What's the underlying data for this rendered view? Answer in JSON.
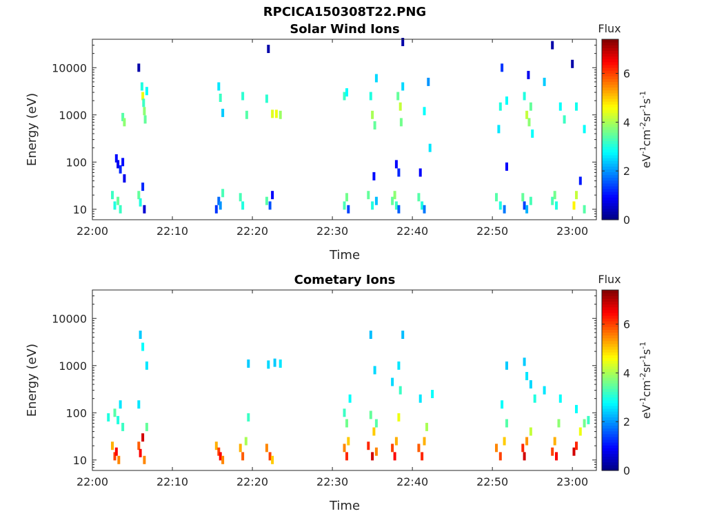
{
  "figure_title": "RPCICA150308T22.PNG",
  "chart_data": [
    {
      "type": "heatmap",
      "title": "Solar Wind Ions",
      "xlabel": "Time",
      "ylabel": "Energy (eV)",
      "y_scale": "log",
      "x_range": [
        "22:00",
        "23:03"
      ],
      "ylim": [
        6,
        40000
      ],
      "x_ticks": [
        "22:00",
        "22:10",
        "22:20",
        "22:30",
        "22:40",
        "22:50",
        "23:00"
      ],
      "y_ticks": [
        {
          "value": 10,
          "label": "10"
        },
        {
          "value": 100,
          "label": "100"
        },
        {
          "value": 1000,
          "label": "1000"
        },
        {
          "value": 10000,
          "label": "10000"
        }
      ],
      "colorbar": {
        "title": "Flux",
        "label": "eV-1cm-2sr-1s-1",
        "range": [
          0,
          7.4
        ],
        "ticks": [
          "0",
          "2",
          "4",
          "6"
        ],
        "colormap": "jet"
      },
      "points": [
        {
          "t": 2.5,
          "e": 20,
          "f": 3.2
        },
        {
          "t": 2.8,
          "e": 12,
          "f": 3.0
        },
        {
          "t": 3.2,
          "e": 15,
          "f": 3.5
        },
        {
          "t": 3.5,
          "e": 10,
          "f": 3.2
        },
        {
          "t": 3.0,
          "e": 120,
          "f": 1.0
        },
        {
          "t": 3.2,
          "e": 90,
          "f": 0.8
        },
        {
          "t": 3.5,
          "e": 70,
          "f": 1.2
        },
        {
          "t": 3.8,
          "e": 100,
          "f": 1.0
        },
        {
          "t": 4.0,
          "e": 45,
          "f": 0.8
        },
        {
          "t": 3.8,
          "e": 900,
          "f": 3.4
        },
        {
          "t": 4.0,
          "e": 700,
          "f": 3.8
        },
        {
          "t": 5.8,
          "e": 10000,
          "f": 0.3
        },
        {
          "t": 5.8,
          "e": 20,
          "f": 3.5
        },
        {
          "t": 6.0,
          "e": 14,
          "f": 3.0
        },
        {
          "t": 6.3,
          "e": 30,
          "f": 1.2
        },
        {
          "t": 6.5,
          "e": 10,
          "f": 0.6
        },
        {
          "t": 6.2,
          "e": 4000,
          "f": 3.0
        },
        {
          "t": 6.3,
          "e": 2500,
          "f": 4.5
        },
        {
          "t": 6.5,
          "e": 1200,
          "f": 3.8
        },
        {
          "t": 6.6,
          "e": 800,
          "f": 3.5
        },
        {
          "t": 6.8,
          "e": 3200,
          "f": 2.8
        },
        {
          "t": 6.4,
          "e": 1800,
          "f": 3.2
        },
        {
          "t": 15.5,
          "e": 10,
          "f": 1.3
        },
        {
          "t": 15.8,
          "e": 15,
          "f": 1.7
        },
        {
          "t": 16.0,
          "e": 12,
          "f": 2.0
        },
        {
          "t": 16.3,
          "e": 22,
          "f": 3.3
        },
        {
          "t": 15.8,
          "e": 4000,
          "f": 2.6
        },
        {
          "t": 16.0,
          "e": 2300,
          "f": 3.2
        },
        {
          "t": 16.3,
          "e": 1100,
          "f": 2.4
        },
        {
          "t": 18.5,
          "e": 18,
          "f": 3.3
        },
        {
          "t": 18.8,
          "e": 12,
          "f": 3.0
        },
        {
          "t": 18.8,
          "e": 2500,
          "f": 3.1
        },
        {
          "t": 19.3,
          "e": 1000,
          "f": 3.4
        },
        {
          "t": 21.8,
          "e": 15,
          "f": 3.4
        },
        {
          "t": 22.2,
          "e": 12,
          "f": 1.5
        },
        {
          "t": 22.5,
          "e": 20,
          "f": 0.9
        },
        {
          "t": 21.8,
          "e": 2200,
          "f": 3.1
        },
        {
          "t": 22.0,
          "e": 25000,
          "f": 0.3
        },
        {
          "t": 22.5,
          "e": 1050,
          "f": 4.4
        },
        {
          "t": 23.0,
          "e": 1050,
          "f": 4.5
        },
        {
          "t": 23.5,
          "e": 1000,
          "f": 3.9
        },
        {
          "t": 31.5,
          "e": 12,
          "f": 3.3
        },
        {
          "t": 31.8,
          "e": 18,
          "f": 3.6
        },
        {
          "t": 32.0,
          "e": 10,
          "f": 1.4
        },
        {
          "t": 31.5,
          "e": 2500,
          "f": 3.2
        },
        {
          "t": 31.8,
          "e": 3000,
          "f": 2.8
        },
        {
          "t": 34.5,
          "e": 20,
          "f": 3.5
        },
        {
          "t": 35.0,
          "e": 12,
          "f": 3.0
        },
        {
          "t": 35.2,
          "e": 50,
          "f": 1.0
        },
        {
          "t": 35.5,
          "e": 15,
          "f": 2.3
        },
        {
          "t": 34.8,
          "e": 2500,
          "f": 3.0
        },
        {
          "t": 35.0,
          "e": 1000,
          "f": 4.0
        },
        {
          "t": 35.3,
          "e": 600,
          "f": 3.5
        },
        {
          "t": 35.5,
          "e": 6000,
          "f": 2.5
        },
        {
          "t": 37.5,
          "e": 15,
          "f": 3.5
        },
        {
          "t": 37.8,
          "e": 20,
          "f": 3.8
        },
        {
          "t": 38.0,
          "e": 12,
          "f": 3.2
        },
        {
          "t": 38.3,
          "e": 10,
          "f": 1.6
        },
        {
          "t": 38.0,
          "e": 90,
          "f": 0.9
        },
        {
          "t": 38.3,
          "e": 60,
          "f": 1.2
        },
        {
          "t": 38.2,
          "e": 2500,
          "f": 3.5
        },
        {
          "t": 38.5,
          "e": 1500,
          "f": 4.2
        },
        {
          "t": 38.6,
          "e": 700,
          "f": 3.6
        },
        {
          "t": 38.8,
          "e": 4000,
          "f": 2.5
        },
        {
          "t": 38.8,
          "e": 35000,
          "f": 0.3
        },
        {
          "t": 40.8,
          "e": 18,
          "f": 3.4
        },
        {
          "t": 41.2,
          "e": 12,
          "f": 3.0
        },
        {
          "t": 41.5,
          "e": 10,
          "f": 1.8
        },
        {
          "t": 41.0,
          "e": 60,
          "f": 0.9
        },
        {
          "t": 41.5,
          "e": 1200,
          "f": 2.8
        },
        {
          "t": 42.0,
          "e": 5000,
          "f": 2.0
        },
        {
          "t": 42.2,
          "e": 200,
          "f": 2.6
        },
        {
          "t": 50.5,
          "e": 18,
          "f": 3.4
        },
        {
          "t": 51.0,
          "e": 12,
          "f": 3.0
        },
        {
          "t": 51.5,
          "e": 10,
          "f": 1.8
        },
        {
          "t": 51.8,
          "e": 80,
          "f": 0.9
        },
        {
          "t": 50.8,
          "e": 500,
          "f": 2.6
        },
        {
          "t": 51.0,
          "e": 1500,
          "f": 3.0
        },
        {
          "t": 51.8,
          "e": 2000,
          "f": 2.8
        },
        {
          "t": 51.2,
          "e": 10000,
          "f": 1.3
        },
        {
          "t": 53.8,
          "e": 18,
          "f": 3.5
        },
        {
          "t": 54.0,
          "e": 12,
          "f": 1.4
        },
        {
          "t": 54.3,
          "e": 10,
          "f": 2.2
        },
        {
          "t": 54.8,
          "e": 15,
          "f": 3.3
        },
        {
          "t": 54.0,
          "e": 2500,
          "f": 3.0
        },
        {
          "t": 54.3,
          "e": 1000,
          "f": 4.2
        },
        {
          "t": 54.6,
          "e": 700,
          "f": 3.8
        },
        {
          "t": 54.8,
          "e": 1500,
          "f": 3.5
        },
        {
          "t": 55.0,
          "e": 400,
          "f": 2.8
        },
        {
          "t": 54.5,
          "e": 7000,
          "f": 0.8
        },
        {
          "t": 57.5,
          "e": 15,
          "f": 3.3
        },
        {
          "t": 58.0,
          "e": 12,
          "f": 3.0
        },
        {
          "t": 57.8,
          "e": 20,
          "f": 3.6
        },
        {
          "t": 56.5,
          "e": 5000,
          "f": 2.4
        },
        {
          "t": 57.5,
          "e": 30000,
          "f": 0.3
        },
        {
          "t": 58.5,
          "e": 1500,
          "f": 2.8
        },
        {
          "t": 59.0,
          "e": 800,
          "f": 3.2
        },
        {
          "t": 60.2,
          "e": 12,
          "f": 4.7
        },
        {
          "t": 60.5,
          "e": 20,
          "f": 4.2
        },
        {
          "t": 61.0,
          "e": 40,
          "f": 1.1
        },
        {
          "t": 61.5,
          "e": 10,
          "f": 3.4
        },
        {
          "t": 60.0,
          "e": 12000,
          "f": 0.3
        },
        {
          "t": 60.5,
          "e": 1500,
          "f": 2.9
        },
        {
          "t": 61.5,
          "e": 500,
          "f": 2.8
        }
      ]
    },
    {
      "type": "heatmap",
      "title": "Cometary Ions",
      "xlabel": "Time",
      "ylabel": "Energy (eV)",
      "y_scale": "log",
      "x_range": [
        "22:00",
        "23:03"
      ],
      "ylim": [
        6,
        40000
      ],
      "x_ticks": [
        "22:00",
        "22:10",
        "22:20",
        "22:30",
        "22:40",
        "22:50",
        "23:00"
      ],
      "y_ticks": [
        {
          "value": 10,
          "label": "10"
        },
        {
          "value": 100,
          "label": "100"
        },
        {
          "value": 1000,
          "label": "1000"
        },
        {
          "value": 10000,
          "label": "10000"
        }
      ],
      "colorbar": {
        "title": "Flux",
        "label": "eV-1cm-2sr-1s-1",
        "range": [
          0,
          7.4
        ],
        "ticks": [
          "0",
          "2",
          "4",
          "6"
        ],
        "colormap": "jet"
      },
      "points": [
        {
          "t": 2.5,
          "e": 20,
          "f": 5.2
        },
        {
          "t": 2.8,
          "e": 12,
          "f": 6.0
        },
        {
          "t": 3.0,
          "e": 15,
          "f": 6.5
        },
        {
          "t": 3.3,
          "e": 10,
          "f": 5.5
        },
        {
          "t": 2.8,
          "e": 100,
          "f": 3.4
        },
        {
          "t": 3.2,
          "e": 70,
          "f": 3.0
        },
        {
          "t": 3.5,
          "e": 150,
          "f": 2.6
        },
        {
          "t": 3.8,
          "e": 50,
          "f": 3.2
        },
        {
          "t": 2.0,
          "e": 80,
          "f": 3.0
        },
        {
          "t": 5.8,
          "e": 20,
          "f": 5.8
        },
        {
          "t": 6.0,
          "e": 14,
          "f": 6.5
        },
        {
          "t": 6.3,
          "e": 30,
          "f": 6.8
        },
        {
          "t": 6.5,
          "e": 10,
          "f": 5.5
        },
        {
          "t": 6.8,
          "e": 50,
          "f": 3.5
        },
        {
          "t": 6.0,
          "e": 4500,
          "f": 2.4
        },
        {
          "t": 6.3,
          "e": 2500,
          "f": 2.8
        },
        {
          "t": 6.8,
          "e": 1000,
          "f": 2.6
        },
        {
          "t": 5.8,
          "e": 150,
          "f": 2.6
        },
        {
          "t": 15.5,
          "e": 20,
          "f": 5.2
        },
        {
          "t": 15.8,
          "e": 15,
          "f": 6.0
        },
        {
          "t": 16.0,
          "e": 12,
          "f": 6.5
        },
        {
          "t": 16.3,
          "e": 10,
          "f": 5.5
        },
        {
          "t": 18.5,
          "e": 18,
          "f": 5.2
        },
        {
          "t": 18.8,
          "e": 12,
          "f": 5.8
        },
        {
          "t": 19.2,
          "e": 25,
          "f": 4.0
        },
        {
          "t": 19.5,
          "e": 80,
          "f": 3.2
        },
        {
          "t": 21.8,
          "e": 18,
          "f": 5.5
        },
        {
          "t": 22.2,
          "e": 12,
          "f": 6.0
        },
        {
          "t": 22.5,
          "e": 10,
          "f": 5.0
        },
        {
          "t": 19.5,
          "e": 1100,
          "f": 2.4
        },
        {
          "t": 22.0,
          "e": 1050,
          "f": 2.5
        },
        {
          "t": 22.8,
          "e": 1150,
          "f": 2.4
        },
        {
          "t": 23.5,
          "e": 1100,
          "f": 2.6
        },
        {
          "t": 31.5,
          "e": 18,
          "f": 5.5
        },
        {
          "t": 31.8,
          "e": 12,
          "f": 6.2
        },
        {
          "t": 32.0,
          "e": 25,
          "f": 5.0
        },
        {
          "t": 31.5,
          "e": 100,
          "f": 3.2
        },
        {
          "t": 31.8,
          "e": 60,
          "f": 3.6
        },
        {
          "t": 32.2,
          "e": 200,
          "f": 2.8
        },
        {
          "t": 34.5,
          "e": 20,
          "f": 6.2
        },
        {
          "t": 35.0,
          "e": 12,
          "f": 6.8
        },
        {
          "t": 35.2,
          "e": 40,
          "f": 5.0
        },
        {
          "t": 35.5,
          "e": 15,
          "f": 5.5
        },
        {
          "t": 34.8,
          "e": 90,
          "f": 3.5
        },
        {
          "t": 35.5,
          "e": 60,
          "f": 3.4
        },
        {
          "t": 34.8,
          "e": 4500,
          "f": 2.3
        },
        {
          "t": 35.3,
          "e": 800,
          "f": 2.5
        },
        {
          "t": 37.5,
          "e": 18,
          "f": 6.0
        },
        {
          "t": 37.8,
          "e": 12,
          "f": 6.5
        },
        {
          "t": 38.0,
          "e": 25,
          "f": 5.2
        },
        {
          "t": 38.3,
          "e": 80,
          "f": 4.5
        },
        {
          "t": 38.3,
          "e": 1000,
          "f": 2.6
        },
        {
          "t": 38.8,
          "e": 4500,
          "f": 2.3
        },
        {
          "t": 37.5,
          "e": 450,
          "f": 2.5
        },
        {
          "t": 38.5,
          "e": 300,
          "f": 3.2
        },
        {
          "t": 40.8,
          "e": 18,
          "f": 5.8
        },
        {
          "t": 41.2,
          "e": 12,
          "f": 6.2
        },
        {
          "t": 41.5,
          "e": 25,
          "f": 5.2
        },
        {
          "t": 41.8,
          "e": 50,
          "f": 4.0
        },
        {
          "t": 41.0,
          "e": 200,
          "f": 2.6
        },
        {
          "t": 42.5,
          "e": 250,
          "f": 2.8
        },
        {
          "t": 50.5,
          "e": 18,
          "f": 5.5
        },
        {
          "t": 51.0,
          "e": 12,
          "f": 6.0
        },
        {
          "t": 51.5,
          "e": 25,
          "f": 5.0
        },
        {
          "t": 51.8,
          "e": 60,
          "f": 3.4
        },
        {
          "t": 51.8,
          "e": 1000,
          "f": 2.4
        },
        {
          "t": 51.2,
          "e": 150,
          "f": 2.8
        },
        {
          "t": 53.8,
          "e": 18,
          "f": 6.2
        },
        {
          "t": 54.0,
          "e": 12,
          "f": 6.8
        },
        {
          "t": 54.3,
          "e": 25,
          "f": 5.4
        },
        {
          "t": 54.8,
          "e": 40,
          "f": 4.2
        },
        {
          "t": 54.0,
          "e": 1200,
          "f": 2.4
        },
        {
          "t": 54.3,
          "e": 600,
          "f": 2.6
        },
        {
          "t": 54.8,
          "e": 400,
          "f": 2.5
        },
        {
          "t": 55.3,
          "e": 200,
          "f": 3.0
        },
        {
          "t": 57.5,
          "e": 15,
          "f": 6.0
        },
        {
          "t": 58.0,
          "e": 12,
          "f": 6.5
        },
        {
          "t": 57.8,
          "e": 25,
          "f": 5.2
        },
        {
          "t": 58.3,
          "e": 60,
          "f": 3.8
        },
        {
          "t": 56.5,
          "e": 300,
          "f": 2.6
        },
        {
          "t": 58.5,
          "e": 200,
          "f": 2.8
        },
        {
          "t": 60.2,
          "e": 15,
          "f": 6.8
        },
        {
          "t": 60.5,
          "e": 20,
          "f": 6.2
        },
        {
          "t": 61.0,
          "e": 40,
          "f": 4.5
        },
        {
          "t": 61.5,
          "e": 60,
          "f": 3.6
        },
        {
          "t": 60.5,
          "e": 120,
          "f": 2.8
        },
        {
          "t": 62.0,
          "e": 70,
          "f": 3.2
        }
      ]
    }
  ]
}
